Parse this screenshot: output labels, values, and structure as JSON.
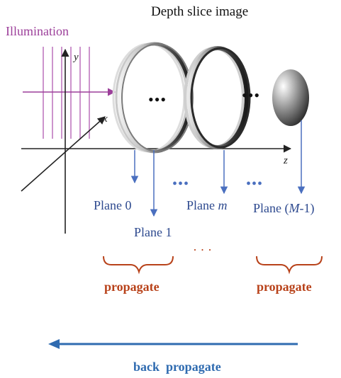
{
  "title": "Depth slice image",
  "illumination_label": "Illumination",
  "axes": {
    "x": "x",
    "y": "y",
    "z": "z"
  },
  "planes": [
    {
      "text": "Plane 0"
    },
    {
      "text": "Plane 1"
    },
    {
      "prefix": "Plane ",
      "var": "m"
    },
    {
      "prefix": "Plane (",
      "var": "M",
      "suffix": "-1)"
    }
  ],
  "ellipsis": {
    "between_rings_1": "•••",
    "between_rings_2": "•••",
    "between_planes_1": "•••",
    "between_planes_2": "•••",
    "bottom": "· · ·"
  },
  "propagate_labels": [
    "propagate",
    "propagate"
  ],
  "back_propagate_label": "back  propagate",
  "colors": {
    "illumination": "#9c3f9a",
    "plane_text": "#2e4a8f",
    "plane_arrow": "#4a6fbf",
    "propagate": "#b8421a",
    "back_propagate": "#2f6bb0"
  }
}
